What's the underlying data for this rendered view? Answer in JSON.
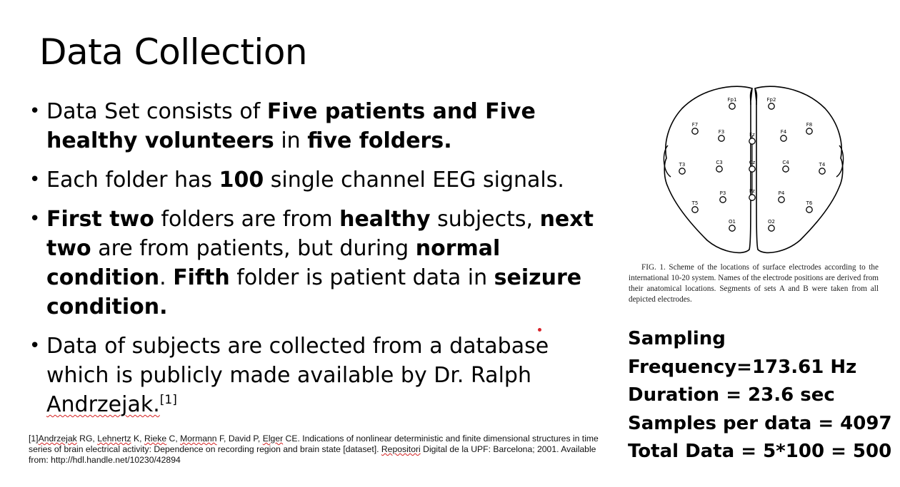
{
  "slide": {
    "title": "Data Collection",
    "bullets": [
      {
        "parts": [
          {
            "t": "Data Set consists of "
          },
          {
            "t": "Five patients and Five healthy volunteers",
            "b": true
          },
          {
            "t": " in "
          },
          {
            "t": "five folders.",
            "b": true
          }
        ]
      },
      {
        "parts": [
          {
            "t": "Each folder has "
          },
          {
            "t": "100",
            "b": true
          },
          {
            "t": " single channel EEG signals."
          }
        ]
      },
      {
        "parts": [
          {
            "t": "First two",
            "b": true
          },
          {
            "t": " folders are from "
          },
          {
            "t": "healthy",
            "b": true
          },
          {
            "t": " subjects, "
          },
          {
            "t": "next two",
            "b": true
          },
          {
            "t": " are from patients, but during "
          },
          {
            "t": "normal condition",
            "b": true
          },
          {
            "t": ". "
          },
          {
            "t": "Fifth",
            "b": true
          },
          {
            "t": " folder is patient data in "
          },
          {
            "t": "seizure condition.",
            "b": true
          }
        ]
      },
      {
        "parts": [
          {
            "t": "Data of subjects are collected from a database which is publicly made available by Dr. Ralph "
          },
          {
            "t": "Andrzejak.",
            "w": true
          },
          {
            "t": "[1]",
            "sup": true
          }
        ]
      }
    ],
    "reference": [
      {
        "t": "[1]"
      },
      {
        "t": "Andrzejak",
        "w": true
      },
      {
        "t": " RG, "
      },
      {
        "t": "Lehnertz",
        "w": true
      },
      {
        "t": " K, "
      },
      {
        "t": "Rieke",
        "w": true
      },
      {
        "t": " C, "
      },
      {
        "t": "Mormann",
        "w": true
      },
      {
        "t": " F, David P, "
      },
      {
        "t": "Elger",
        "w": true
      },
      {
        "t": " CE. Indications of nonlinear deterministic and finite dimensional structures in time series of brain electrical activity: Dependence on recording region and brain state [dataset]. "
      },
      {
        "t": "Repositori",
        "w": true
      },
      {
        "t": " Digital de la UPF: Barcelona; 2001. Available from: http://hdl.handle.net/10230/42894"
      }
    ],
    "figure_caption": "FIG. 1. Scheme of the locations of surface electrodes according to the international 10-20 system. Names of the electrode positions are derived from their anatomical locations. Segments of sets A and B were taken from all depicted electrodes.",
    "electrodes": [
      "Fp1",
      "Fp2",
      "F7",
      "F3",
      "Fz",
      "F4",
      "F8",
      "T3",
      "C3",
      "Cz",
      "C4",
      "T4",
      "P3",
      "Pz",
      "P4",
      "T5",
      "T6",
      "O1",
      "O2"
    ],
    "params": [
      "Sampling",
      "Frequency=173.61 Hz",
      "Duration = 23.6 sec",
      "Samples per data = 4097",
      "Total Data = 5*100 = 500"
    ],
    "colors": {
      "text": "#000000",
      "spellcheck_underline": "#d42020",
      "laser_dot": "#d8232a"
    }
  }
}
